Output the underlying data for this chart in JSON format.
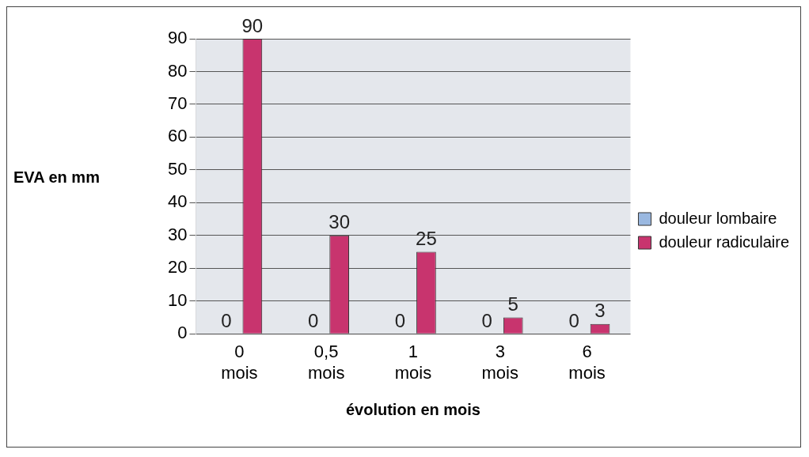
{
  "chart_data": {
    "type": "bar",
    "xlabel": "évolution en mois",
    "ylabel": "EVA en mm",
    "categories": [
      "0 mois",
      "0,5 mois",
      "1 mois",
      "3 mois",
      "6 mois"
    ],
    "series": [
      {
        "name": "douleur lombaire",
        "color": "#9ab8e0",
        "values": [
          0,
          0,
          0,
          0,
          0
        ]
      },
      {
        "name": "douleur radiculaire",
        "color": "#c8346e",
        "values": [
          90,
          30,
          25,
          5,
          3
        ]
      }
    ],
    "ylim": [
      0,
      90
    ],
    "yticks": [
      0,
      10,
      20,
      30,
      40,
      50,
      60,
      70,
      80,
      90
    ],
    "grid": "y",
    "legend": "right",
    "data_labels": true
  }
}
